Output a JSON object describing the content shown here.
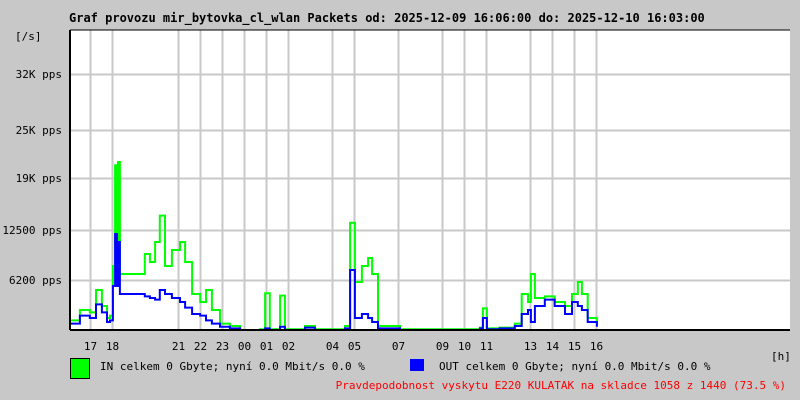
{
  "title": "Graf provozu mir_bytovka_cl_wlan Packets od: 2025-12-09 16:06:00 do: 2025-12-10 16:03:00",
  "chart_data": {
    "type": "line",
    "title": "Graf provozu mir_bytovka_cl_wlan Packets od: 2025-12-09 16:06:00 do: 2025-12-10 16:03:00",
    "ylabel": "[/s]",
    "xlabel": "[h]",
    "xlim": [
      "12-09 16:06",
      "12-10 16:03"
    ],
    "ylim": [
      0,
      37500
    ],
    "grid": true,
    "y_ticks": [
      {
        "value": 6200,
        "label": "6200 pps"
      },
      {
        "value": 12500,
        "label": "12500 pps"
      },
      {
        "value": 19000,
        "label": "19K pps"
      },
      {
        "value": 25000,
        "label": "25K pps"
      },
      {
        "value": 32000,
        "label": "32K pps"
      }
    ],
    "x_ticks": [
      {
        "t": "12-09 17:00",
        "label": "17"
      },
      {
        "t": "12-09 18:00",
        "label": "18"
      },
      {
        "t": "12-09 21:00",
        "label": "21"
      },
      {
        "t": "12-09 22:00",
        "label": "22"
      },
      {
        "t": "12-09 23:00",
        "label": "23"
      },
      {
        "t": "12-10 00:00",
        "label": "00"
      },
      {
        "t": "12-10 01:00",
        "label": "01"
      },
      {
        "t": "12-10 02:00",
        "label": "02"
      },
      {
        "t": "12-10 04:00",
        "label": "04"
      },
      {
        "t": "12-10 05:00",
        "label": "05"
      },
      {
        "t": "12-10 07:00",
        "label": "07"
      },
      {
        "t": "12-10 09:00",
        "label": "09"
      },
      {
        "t": "12-10 10:00",
        "label": "10"
      },
      {
        "t": "12-10 11:00",
        "label": "11"
      },
      {
        "t": "12-10 13:00",
        "label": "13"
      },
      {
        "t": "12-10 14:00",
        "label": "14"
      },
      {
        "t": "12-10 15:00",
        "label": "15"
      },
      {
        "t": "12-10 16:00",
        "label": "16"
      }
    ],
    "x": [
      "12-09 16:06",
      "12-09 16:33",
      "12-09 17:00",
      "12-09 17:17",
      "12-09 17:33",
      "12-09 17:47",
      "12-09 17:55",
      "12-09 18:03",
      "12-09 18:09",
      "12-09 18:14",
      "12-09 18:17",
      "12-09 18:22",
      "12-09 18:50",
      "12-09 19:17",
      "12-09 19:30",
      "12-09 19:44",
      "12-09 19:58",
      "12-09 20:11",
      "12-09 20:25",
      "12-09 20:44",
      "12-09 21:06",
      "12-09 21:20",
      "12-09 21:39",
      "12-09 22:01",
      "12-09 22:17",
      "12-09 22:33",
      "12-09 22:55",
      "12-09 23:22",
      "12-09 23:50",
      "12-10 00:44",
      "12-10 00:58",
      "12-10 01:11",
      "12-10 01:39",
      "12-10 01:52",
      "12-10 02:47",
      "12-10 03:14",
      "12-10 04:36",
      "12-10 04:50",
      "12-10 05:03",
      "12-10 05:22",
      "12-10 05:39",
      "12-10 05:50",
      "12-10 06:06",
      "12-10 07:06",
      "12-10 10:44",
      "12-10 10:52",
      "12-10 11:03",
      "12-10 11:38",
      "12-10 12:19",
      "12-10 12:38",
      "12-10 12:55",
      "12-10 13:03",
      "12-10 13:14",
      "12-10 13:41",
      "12-10 14:08",
      "12-10 14:36",
      "12-10 14:55",
      "12-10 15:11",
      "12-10 15:22",
      "12-10 15:38",
      "12-10 16:03"
    ],
    "series": [
      {
        "name": "IN",
        "color": "#00ff00",
        "values": [
          1200,
          2500,
          2200,
          5000,
          3000,
          1500,
          1800,
          8000,
          20600,
          9000,
          21000,
          7000,
          7000,
          7000,
          9500,
          8500,
          11000,
          14300,
          8000,
          10000,
          11000,
          8500,
          4500,
          3500,
          5000,
          2500,
          800,
          500,
          0,
          100,
          4600,
          100,
          4300,
          100,
          500,
          100,
          500,
          13400,
          6000,
          8000,
          9000,
          7000,
          500,
          100,
          300,
          2700,
          200,
          300,
          800,
          4500,
          3500,
          7000,
          4000,
          4200,
          3500,
          3000,
          4500,
          6000,
          4500,
          1500,
          800
        ]
      },
      {
        "name": "OUT",
        "color": "#0000ff",
        "values": [
          800,
          1800,
          1500,
          3200,
          2200,
          1000,
          1200,
          5500,
          12000,
          5500,
          11000,
          4500,
          4500,
          4500,
          4200,
          4000,
          3800,
          5000,
          4500,
          4000,
          3500,
          2800,
          2000,
          1800,
          1200,
          800,
          400,
          200,
          0,
          0,
          200,
          0,
          400,
          0,
          300,
          0,
          200,
          7500,
          1500,
          2000,
          1500,
          1000,
          200,
          0,
          200,
          1500,
          100,
          200,
          500,
          2000,
          2500,
          1000,
          3000,
          3800,
          3000,
          2000,
          3500,
          3000,
          2500,
          1000,
          400
        ]
      }
    ]
  },
  "legend": {
    "in_text": "IN celkem 0 Gbyte; nyní   0.0 Mbit/s 0.0 %",
    "out_text": "OUT celkem 0 Gbyte; nyní   0.0 Mbit/s 0.0 %",
    "in_color": "#00ff00",
    "out_color": "#0000ff"
  },
  "footer_note": "Pravdepodobnost vyskytu E220 KULATAK na skladce 1058 z 1440 (73.5 %)",
  "footer_color": "#ff0000"
}
